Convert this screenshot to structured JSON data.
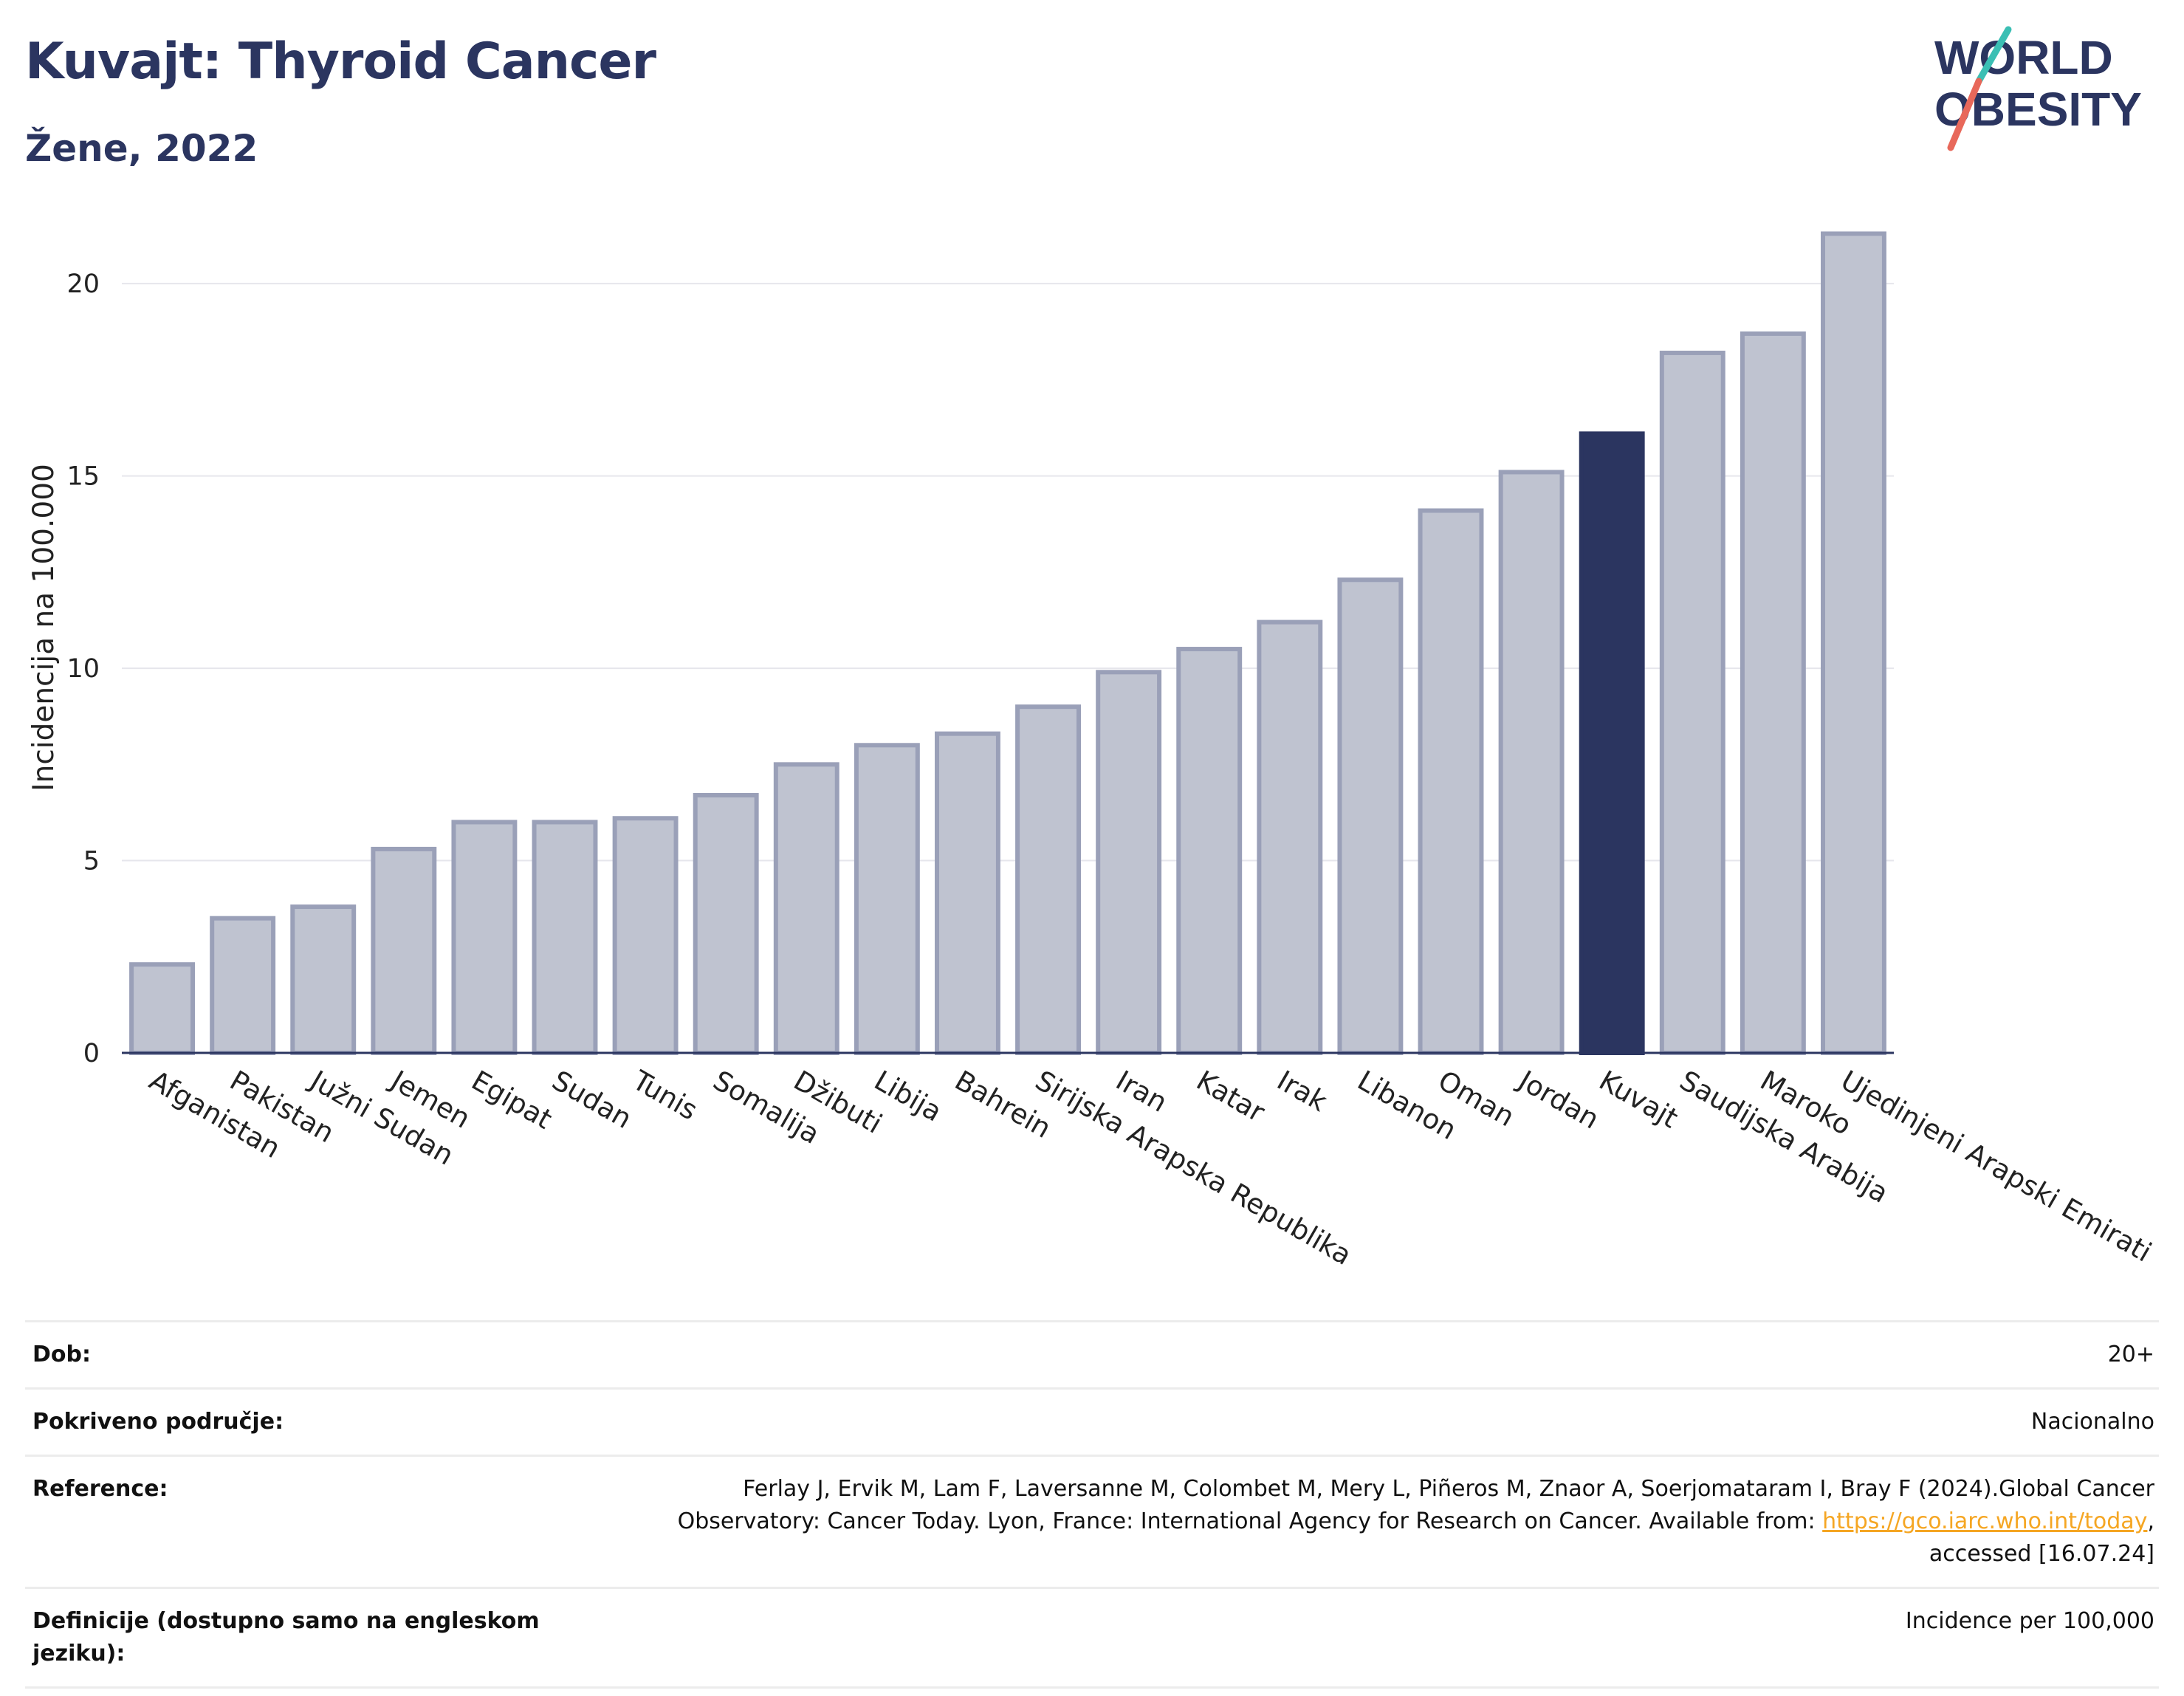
{
  "header": {
    "title": "Kuvajt: Thyroid Cancer",
    "subtitle": "Žene, 2022"
  },
  "logo": {
    "line1": "WORLD",
    "line2": "OBESITY"
  },
  "colors": {
    "bar": "#bfc3d0",
    "bar_border": "#9aa0b8",
    "highlight": "#2b3560",
    "grid": "#e6e6ec",
    "logo_text": "#2b3560",
    "logo_teal": "#3bbfb4",
    "logo_red": "#e8685a"
  },
  "chart_data": {
    "type": "bar",
    "ylabel": "Incidencija na 100.000",
    "ylim": [
      0,
      22
    ],
    "yticks": [
      0,
      5,
      10,
      15,
      20
    ],
    "grid": true,
    "highlight": "Kuvajt",
    "categories": [
      "Afganistan",
      "Pakistan",
      "Južni Sudan",
      "Jemen",
      "Egipat",
      "Sudan",
      "Tunis",
      "Somalija",
      "Džibuti",
      "Libija",
      "Bahrein",
      "Sirijska Arapska Republika",
      "Iran",
      "Katar",
      "Irak",
      "Libanon",
      "Oman",
      "Jordan",
      "Kuvajt",
      "Saudijska Arabija",
      "Maroko",
      "Ujedinjeni Arapski Emirati"
    ],
    "values": [
      2.3,
      3.5,
      3.8,
      5.3,
      6.0,
      6.0,
      6.1,
      6.7,
      7.5,
      8.0,
      8.3,
      9.0,
      9.9,
      10.5,
      11.2,
      12.3,
      14.1,
      15.1,
      16.1,
      18.2,
      18.7,
      21.3
    ]
  },
  "info": {
    "age_label": "Dob:",
    "age_value": "20+",
    "coverage_label": "Pokriveno područje:",
    "coverage_value": "Nacionalno",
    "ref_label": "Reference:",
    "ref_text_1": "Ferlay J, Ervik M, Lam F, Laversanne M, Colombet M, Mery L, Piñeros M, Znaor A, Soerjomataram I, Bray F (2024).Global Cancer",
    "ref_text_2": "Observatory: Cancer Today. Lyon, France: International Agency for Research on Cancer. Available from: ",
    "ref_link": "https://gco.iarc.who.int/today",
    "ref_text_3": ",",
    "ref_text_4": "accessed [16.07.24]",
    "def_label": "Definicije (dostupno samo na engleskom jeziku):",
    "def_value": "Incidence per 100,000"
  }
}
